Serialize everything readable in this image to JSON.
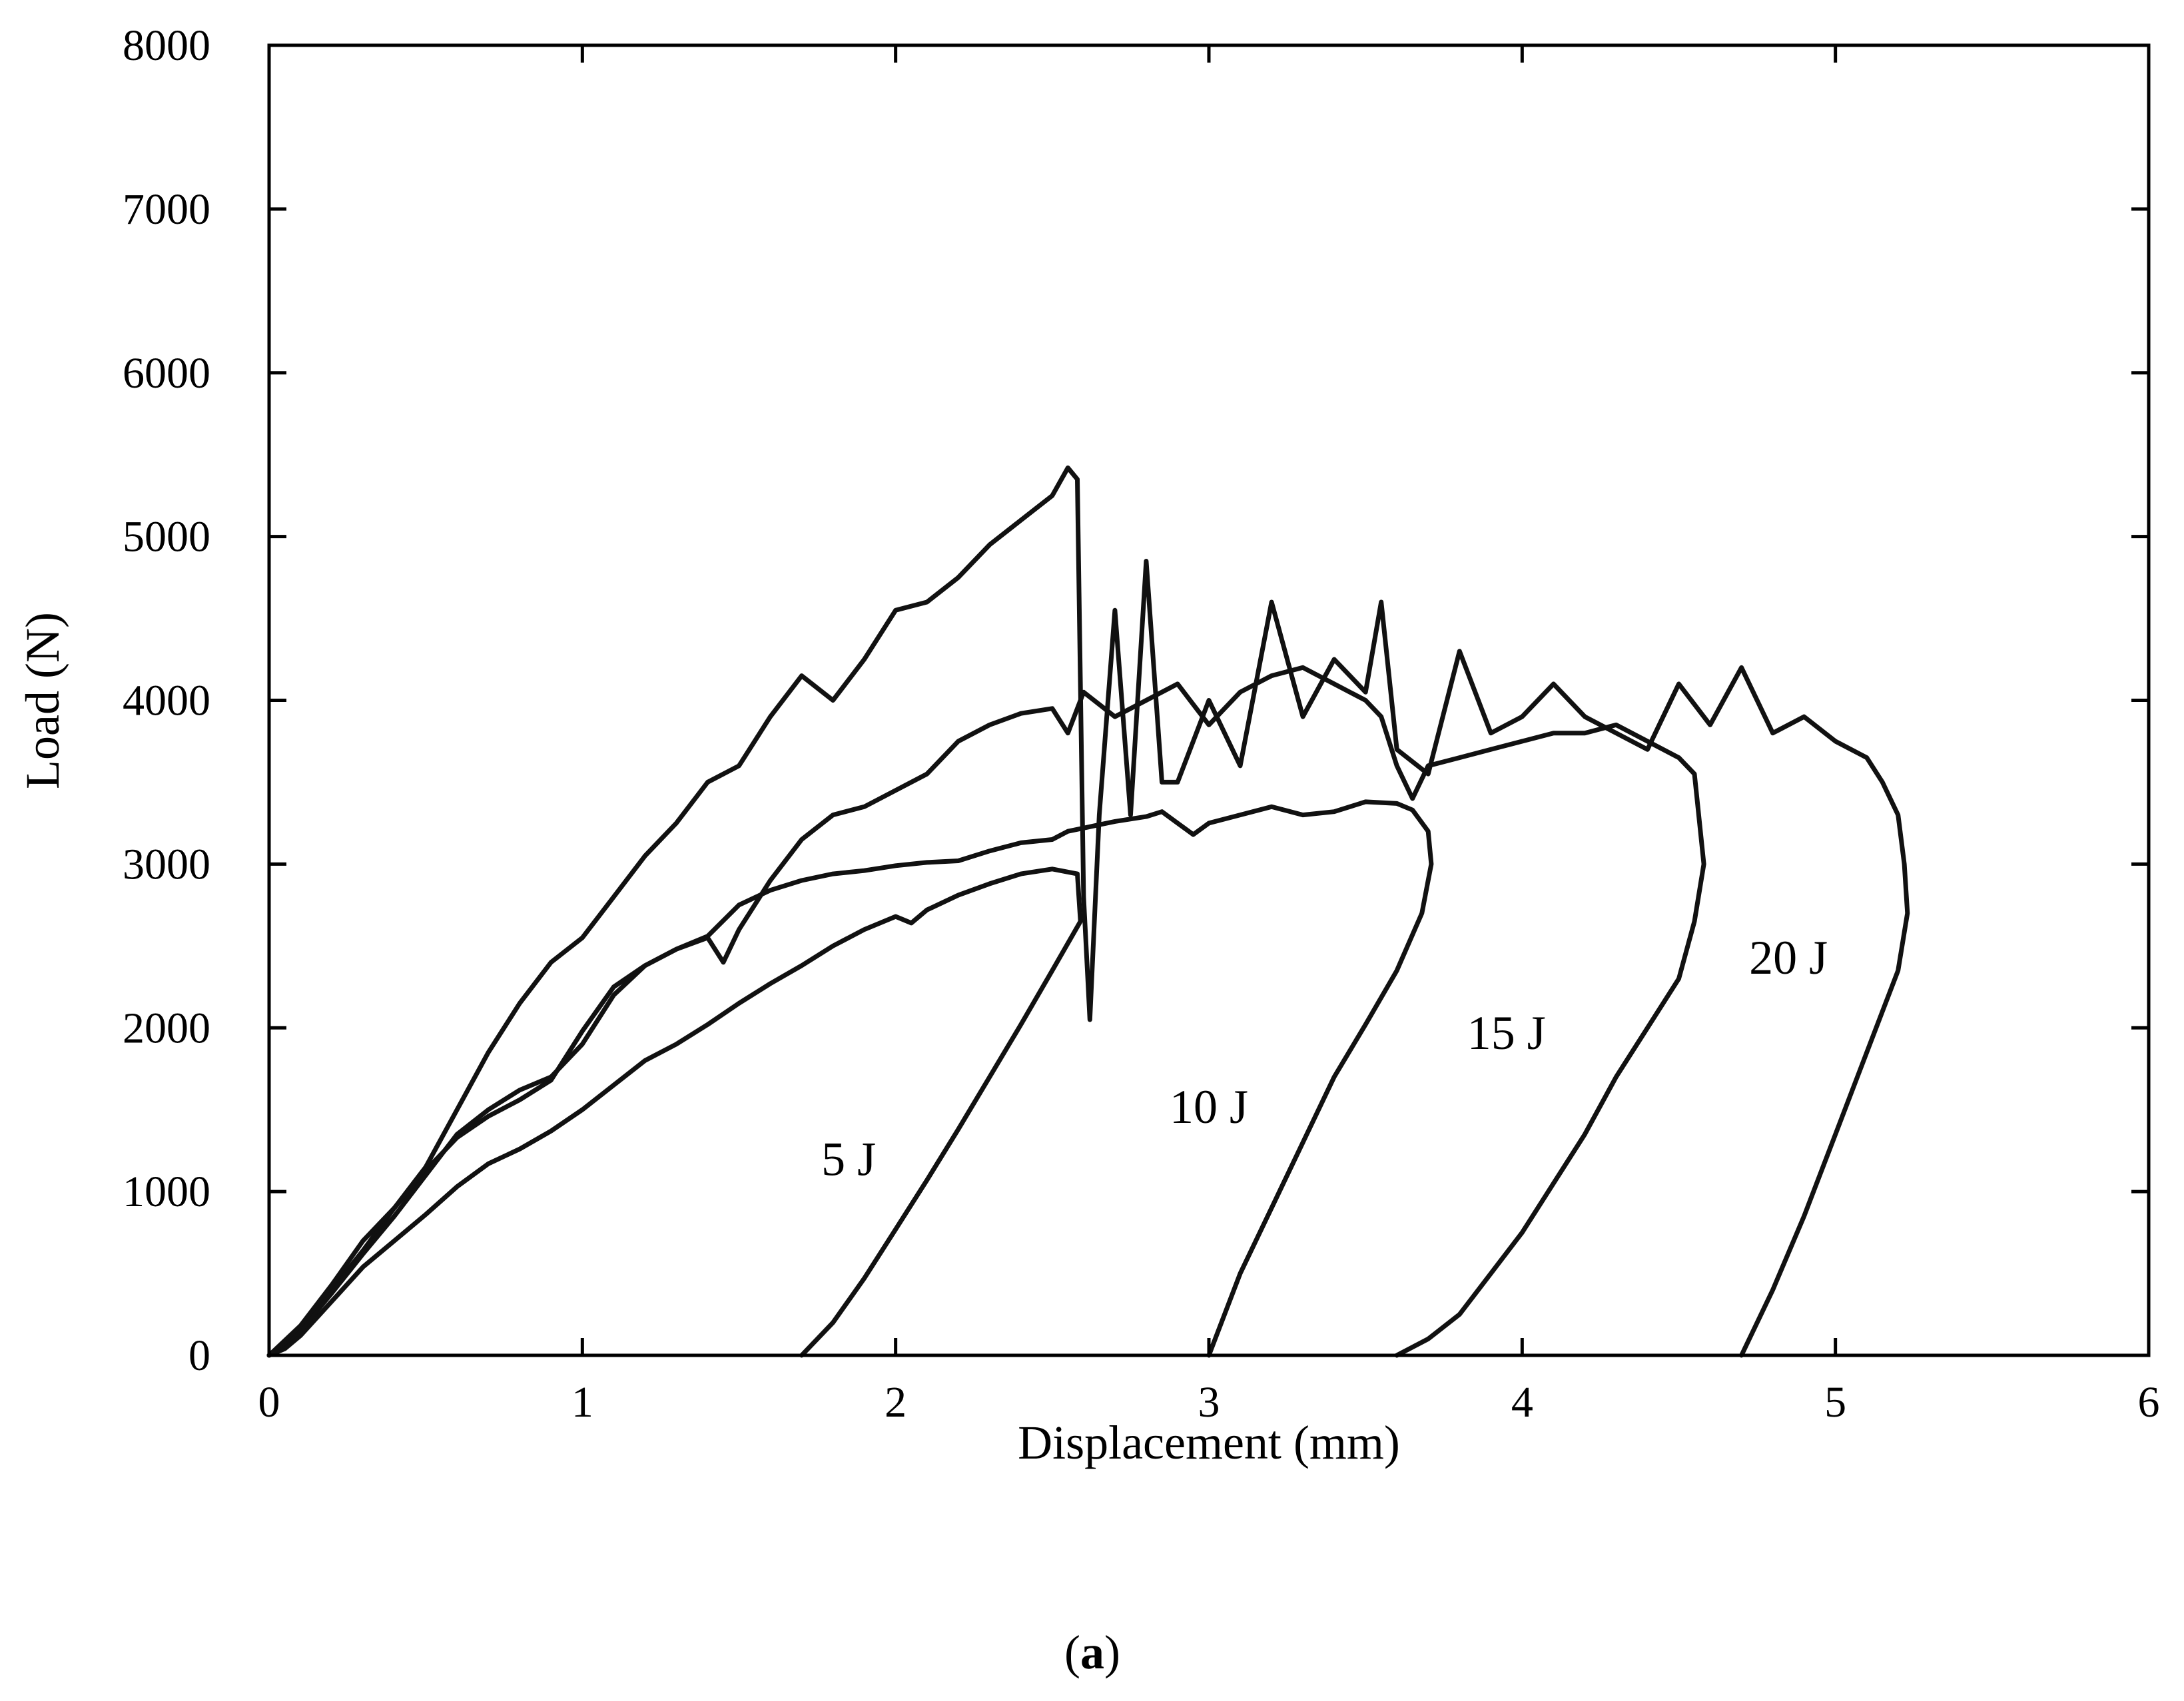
{
  "chart_data": {
    "type": "line",
    "title": "",
    "subfigure_label_open": "(",
    "subfigure_label_letter": "a",
    "subfigure_label_close": ")",
    "xlabel": "Displacement (mm)",
    "ylabel": "Load (N)",
    "xlim": [
      0,
      6
    ],
    "ylim": [
      0,
      8000
    ],
    "xticks": [
      "0",
      "1",
      "2",
      "3",
      "4",
      "5",
      "6"
    ],
    "yticks": [
      "0",
      "1000",
      "2000",
      "3000",
      "4000",
      "5000",
      "6000",
      "7000",
      "8000"
    ],
    "grid": false,
    "legend": "none",
    "annotations": [
      {
        "text": "5 J",
        "x": 1.85,
        "y": 1100
      },
      {
        "text": "10 J",
        "x": 3.0,
        "y": 1420
      },
      {
        "text": "15 J",
        "x": 3.95,
        "y": 1870
      },
      {
        "text": "20 J",
        "x": 4.85,
        "y": 2330
      }
    ],
    "series": [
      {
        "name": "5 J",
        "x": [
          0,
          0.05,
          0.1,
          0.2,
          0.3,
          0.4,
          0.5,
          0.6,
          0.7,
          0.8,
          0.9,
          1.0,
          1.1,
          1.2,
          1.3,
          1.4,
          1.5,
          1.6,
          1.7,
          1.8,
          1.9,
          2.0,
          2.05,
          2.1,
          2.2,
          2.3,
          2.4,
          2.5,
          2.58,
          2.59,
          2.5,
          2.4,
          2.3,
          2.2,
          2.1,
          2.0,
          1.9,
          1.8,
          1.7
        ],
        "y": [
          0,
          40,
          120,
          330,
          540,
          700,
          860,
          1030,
          1170,
          1260,
          1370,
          1500,
          1650,
          1800,
          1900,
          2020,
          2150,
          2270,
          2380,
          2500,
          2600,
          2680,
          2640,
          2720,
          2810,
          2880,
          2940,
          2970,
          2940,
          2650,
          2350,
          2020,
          1700,
          1380,
          1070,
          770,
          470,
          200,
          0
        ]
      },
      {
        "name": "10 J",
        "x": [
          0,
          0.1,
          0.2,
          0.3,
          0.4,
          0.5,
          0.6,
          0.7,
          0.8,
          0.9,
          1.0,
          1.1,
          1.2,
          1.3,
          1.4,
          1.5,
          1.6,
          1.7,
          1.8,
          1.9,
          2.0,
          2.1,
          2.2,
          2.3,
          2.4,
          2.5,
          2.55,
          2.6,
          2.7,
          2.8,
          2.85,
          2.9,
          2.95,
          3.0,
          3.1,
          3.2,
          3.3,
          3.4,
          3.5,
          3.6,
          3.65,
          3.7,
          3.71,
          3.68,
          3.6,
          3.5,
          3.4,
          3.3,
          3.2,
          3.1,
          3.0
        ],
        "y": [
          0,
          150,
          400,
          640,
          900,
          1130,
          1330,
          1460,
          1560,
          1680,
          1980,
          2250,
          2380,
          2480,
          2560,
          2750,
          2840,
          2900,
          2940,
          2960,
          2990,
          3010,
          3020,
          3080,
          3130,
          3150,
          3200,
          3220,
          3260,
          3290,
          3320,
          3250,
          3180,
          3250,
          3300,
          3350,
          3300,
          3320,
          3380,
          3370,
          3330,
          3200,
          3000,
          2700,
          2350,
          2020,
          1700,
          1300,
          900,
          500,
          0
        ]
      },
      {
        "name": "15 J",
        "x": [
          0,
          0.1,
          0.2,
          0.3,
          0.4,
          0.5,
          0.6,
          0.7,
          0.8,
          0.9,
          1.0,
          1.1,
          1.2,
          1.3,
          1.4,
          1.45,
          1.5,
          1.6,
          1.7,
          1.8,
          1.9,
          2.0,
          2.1,
          2.2,
          2.3,
          2.4,
          2.5,
          2.55,
          2.6,
          2.7,
          2.8,
          2.9,
          3.0,
          3.1,
          3.2,
          3.3,
          3.4,
          3.5,
          3.55,
          3.6,
          3.65,
          3.7,
          3.8,
          3.9,
          4.0,
          4.1,
          4.2,
          4.3,
          4.4,
          4.5,
          4.55,
          4.58,
          4.55,
          4.5,
          4.4,
          4.3,
          4.2,
          4.1,
          4.0,
          3.9,
          3.8,
          3.7,
          3.6
        ],
        "y": [
          0,
          150,
          380,
          620,
          850,
          1100,
          1350,
          1500,
          1620,
          1700,
          1900,
          2200,
          2380,
          2480,
          2550,
          2400,
          2600,
          2900,
          3150,
          3300,
          3350,
          3450,
          3550,
          3750,
          3850,
          3920,
          3950,
          3800,
          4050,
          3900,
          4000,
          4100,
          3850,
          4050,
          4150,
          4200,
          4100,
          4000,
          3900,
          3600,
          3400,
          3600,
          3650,
          3700,
          3750,
          3800,
          3800,
          3850,
          3750,
          3650,
          3550,
          3000,
          2650,
          2300,
          2000,
          1700,
          1350,
          1050,
          750,
          500,
          250,
          100,
          0
        ]
      },
      {
        "name": "20 J",
        "x": [
          0,
          0.1,
          0.2,
          0.3,
          0.4,
          0.5,
          0.6,
          0.7,
          0.8,
          0.9,
          1.0,
          1.1,
          1.2,
          1.3,
          1.4,
          1.5,
          1.6,
          1.7,
          1.8,
          1.9,
          2.0,
          2.1,
          2.2,
          2.3,
          2.4,
          2.5,
          2.55,
          2.58,
          2.6,
          2.62,
          2.65,
          2.7,
          2.75,
          2.8,
          2.85,
          2.9,
          3.0,
          3.1,
          3.2,
          3.3,
          3.4,
          3.5,
          3.55,
          3.6,
          3.7,
          3.8,
          3.9,
          4.0,
          4.1,
          4.2,
          4.3,
          4.4,
          4.5,
          4.6,
          4.7,
          4.8,
          4.9,
          5.0,
          5.1,
          5.15,
          5.2,
          5.22,
          5.23,
          5.2,
          5.1,
          5.0,
          4.9,
          4.8,
          4.7
        ],
        "y": [
          0,
          180,
          430,
          700,
          900,
          1150,
          1500,
          1850,
          2150,
          2400,
          2550,
          2800,
          3050,
          3250,
          3500,
          3600,
          3900,
          4150,
          4000,
          4250,
          4550,
          4600,
          4750,
          4950,
          5100,
          5250,
          5420,
          5350,
          2800,
          2050,
          3300,
          4550,
          3300,
          4850,
          3500,
          3500,
          4000,
          3600,
          4600,
          3900,
          4250,
          4050,
          4600,
          3700,
          3550,
          4300,
          3800,
          3900,
          4100,
          3900,
          3800,
          3700,
          4100,
          3850,
          4200,
          3800,
          3900,
          3750,
          3650,
          3500,
          3300,
          3000,
          2700,
          2350,
          1850,
          1350,
          850,
          400,
          0
        ]
      }
    ]
  }
}
